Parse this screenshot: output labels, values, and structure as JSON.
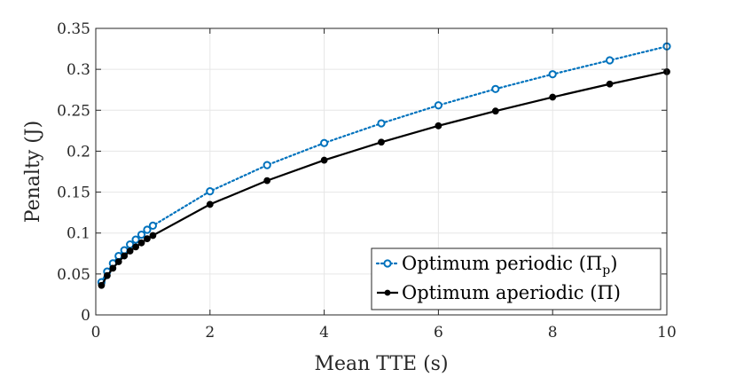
{
  "chart_data": {
    "type": "line",
    "title": "",
    "xlabel": "Mean TTE (s)",
    "ylabel": "Penalty (J)",
    "xlim": [
      0,
      10
    ],
    "ylim": [
      0,
      0.35
    ],
    "xticks": [
      0,
      2,
      4,
      6,
      8,
      10
    ],
    "xtick_labels": [
      "0",
      "2",
      "4",
      "6",
      "8",
      "10"
    ],
    "yticks": [
      0,
      0.05,
      0.1,
      0.15,
      0.2,
      0.25,
      0.3,
      0.35
    ],
    "ytick_labels": [
      "0",
      "0.05",
      "0.1",
      "0.15",
      "0.2",
      "0.25",
      "0.3",
      "0.35"
    ],
    "grid": true,
    "legend_position": "bottom-right",
    "series": [
      {
        "name": "Optimum periodic (Πp)",
        "legend_main": "Optimum periodic (Π",
        "legend_sub": "p",
        "legend_close": ")",
        "color": "#0072BD",
        "line_style": "dotted",
        "marker": "open-circle",
        "x": [
          0.1,
          0.2,
          0.3,
          0.4,
          0.5,
          0.6,
          0.7,
          0.8,
          0.9,
          1,
          2,
          3,
          4,
          5,
          6,
          7,
          8,
          9,
          10
        ],
        "y": [
          0.04,
          0.053,
          0.063,
          0.072,
          0.079,
          0.086,
          0.092,
          0.098,
          0.104,
          0.109,
          0.151,
          0.183,
          0.21,
          0.234,
          0.256,
          0.276,
          0.294,
          0.311,
          0.328
        ]
      },
      {
        "name": "Optimum aperiodic (Π)",
        "legend_main": "Optimum aperiodic (Π)",
        "legend_sub": "",
        "legend_close": "",
        "color": "#000000",
        "line_style": "solid",
        "marker": "filled-circle",
        "x": [
          0.1,
          0.2,
          0.3,
          0.4,
          0.5,
          0.6,
          0.7,
          0.8,
          0.9,
          1,
          2,
          3,
          4,
          5,
          6,
          7,
          8,
          9,
          10
        ],
        "y": [
          0.036,
          0.048,
          0.057,
          0.065,
          0.072,
          0.078,
          0.083,
          0.088,
          0.093,
          0.097,
          0.135,
          0.164,
          0.189,
          0.211,
          0.231,
          0.249,
          0.266,
          0.282,
          0.297
        ]
      }
    ]
  }
}
